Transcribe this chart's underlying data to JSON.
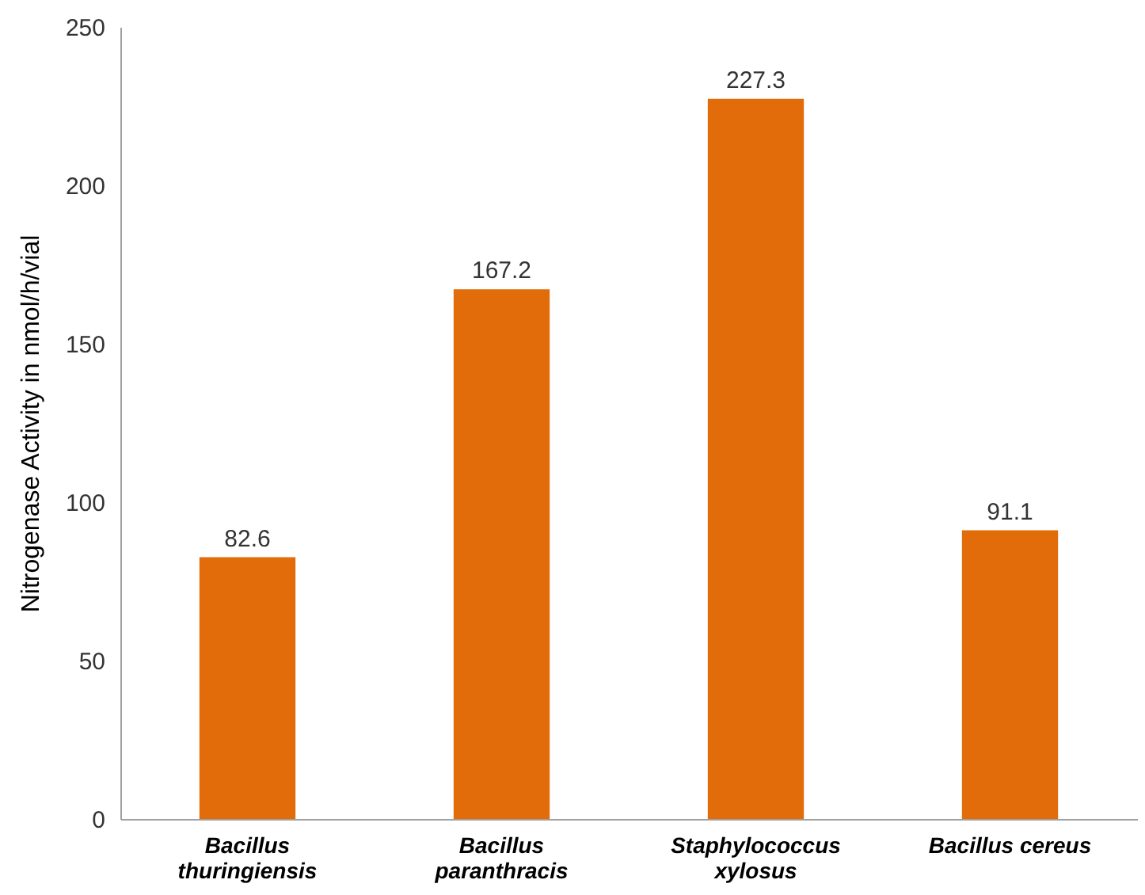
{
  "chart_data": {
    "type": "bar",
    "ylabel": "Nitrogenase Activity in nmol/h/vial",
    "categories": [
      "Bacillus\nthuringiensis",
      "Bacillus\nparanthracis",
      "Staphylococcus\nxylosus",
      "Bacillus cereus"
    ],
    "values": [
      82.6,
      167.2,
      227.3,
      91.1
    ],
    "color": "#e36c0a",
    "ylim": [
      0,
      250
    ],
    "yticks": [
      0,
      50,
      100,
      150,
      200,
      250
    ],
    "grid": false,
    "data_labels": true
  }
}
